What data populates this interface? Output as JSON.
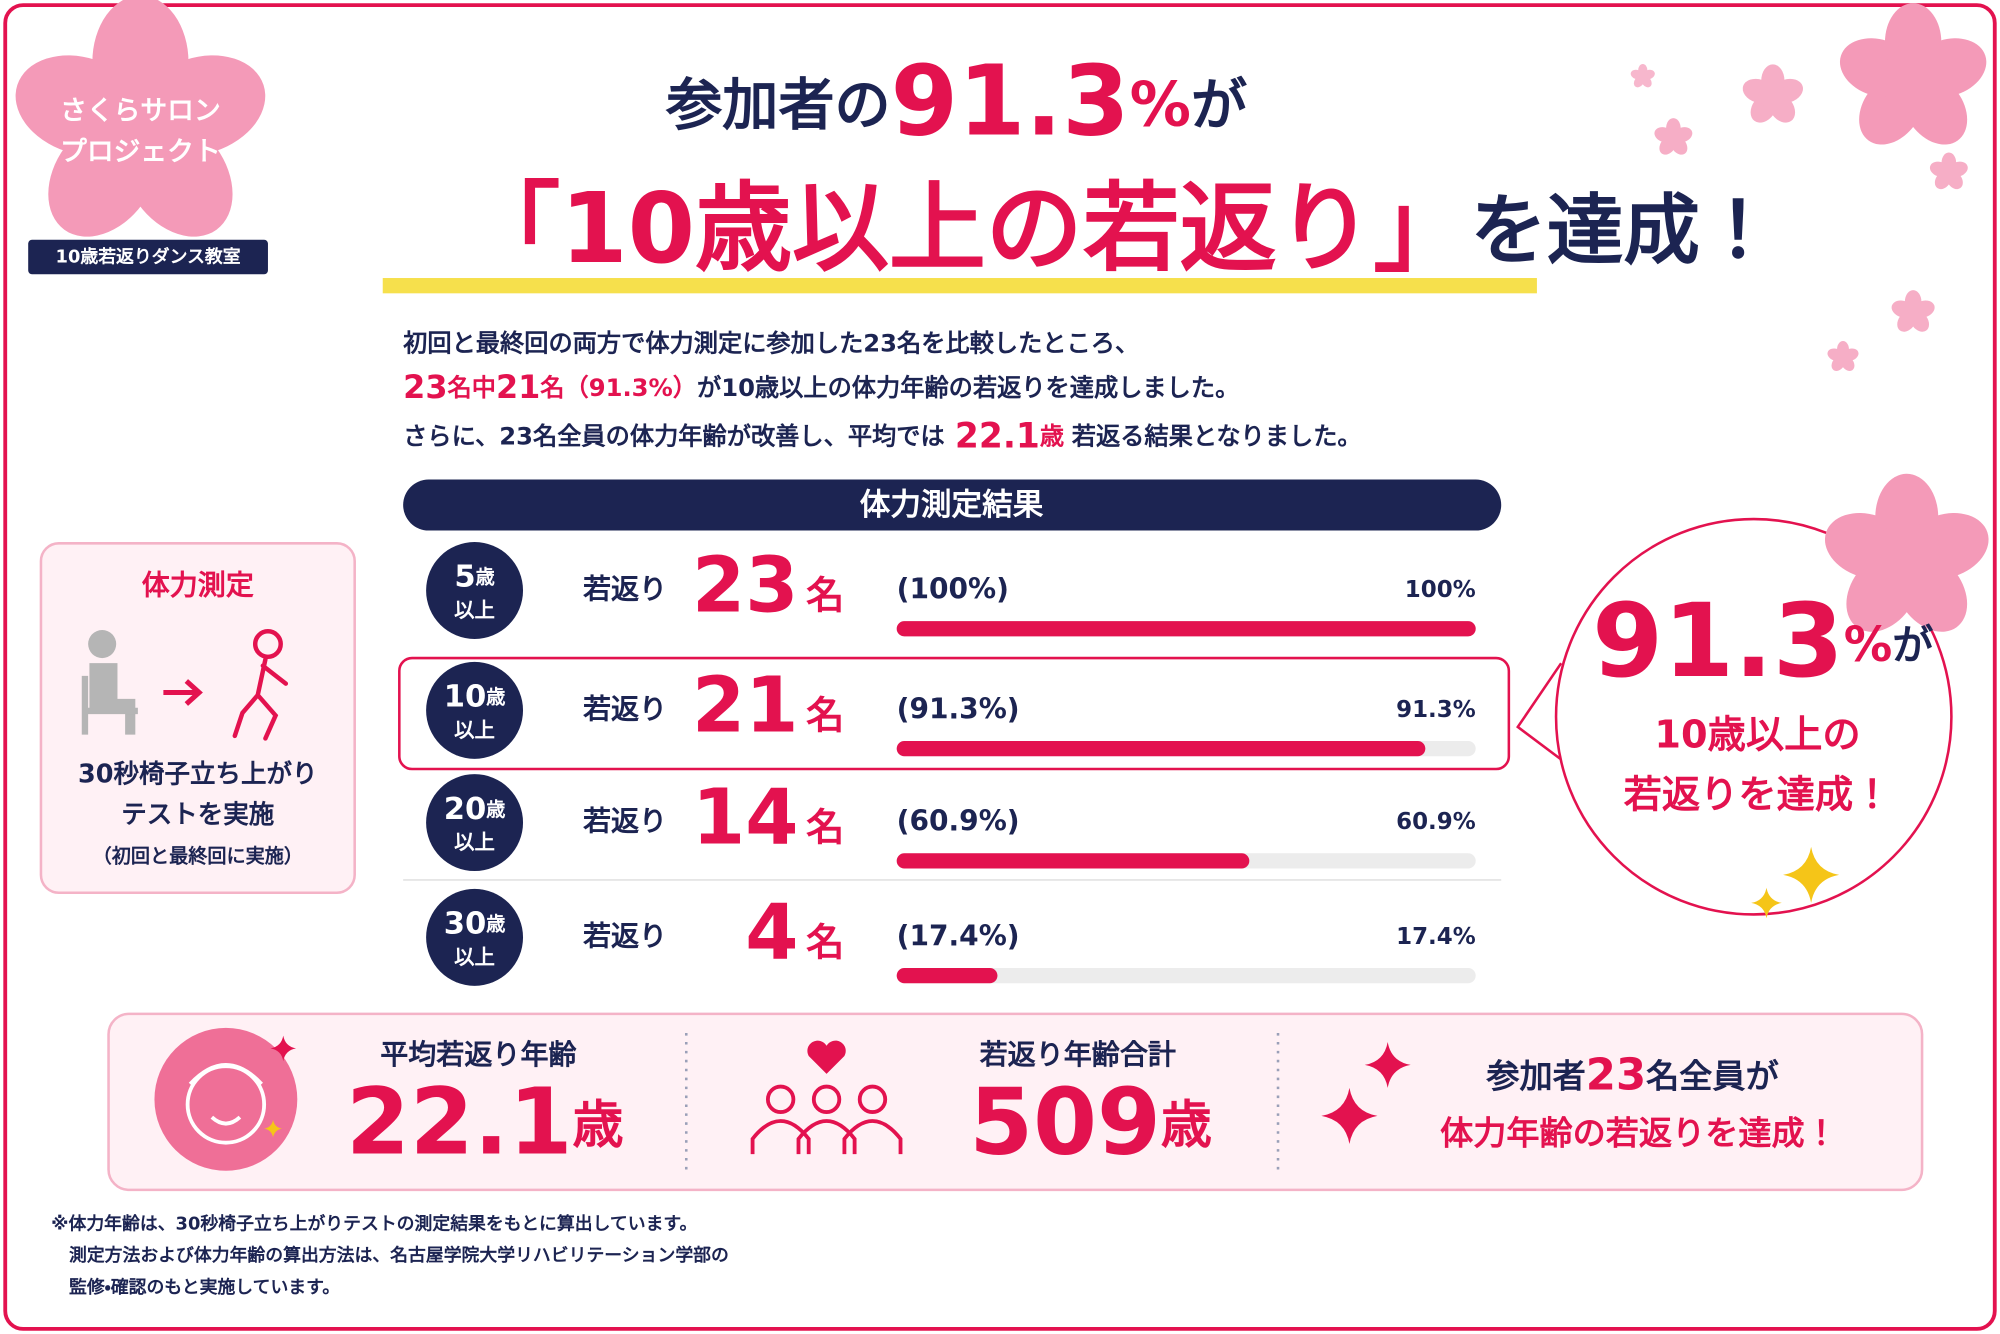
{
  "logo": {
    "line1": "さくらサロン",
    "line2": "プロジェクト",
    "tag": "10歳若返りダンス教室"
  },
  "headline": {
    "line1": [
      "参加者の",
      "91.3",
      "%",
      "が"
    ],
    "line2": [
      "「",
      "10歳以上の若返り",
      "」",
      "を達成！"
    ]
  },
  "intro": {
    "line1": "初回と最終回の両方で体力測定に参加した23名を比較したところ、",
    "line2": [
      "23",
      "名中",
      "21",
      "名",
      "（91.3%）",
      "が10歳以上の体力年齢の若返りを達成しました。"
    ],
    "line3": [
      "さらに、23名全員の体力年齢が改善し、平均では",
      "22.1",
      "歳",
      "若返る結果となりました。"
    ]
  },
  "results": {
    "title": "体力測定結果",
    "rows": [
      {
        "age": "5",
        "age_unit": "歳",
        "age_suffix": "以上",
        "label": "若返り",
        "count": "23",
        "count_unit": "名",
        "ratio": "(100%)",
        "percent": 100,
        "percent_label": "100%"
      },
      {
        "age": "10",
        "age_unit": "歳",
        "age_suffix": "以上",
        "label": "若返り",
        "count": "21",
        "count_unit": "名",
        "ratio": "(91.3%)",
        "percent": 91.3,
        "percent_label": "91.3%"
      },
      {
        "age": "20",
        "age_unit": "歳",
        "age_suffix": "以上",
        "label": "若返り",
        "count": "14",
        "count_unit": "名",
        "ratio": "(60.9%)",
        "percent": 60.9,
        "percent_label": "60.9%"
      },
      {
        "age": "30",
        "age_unit": "歳",
        "age_suffix": "以上",
        "label": "若返り",
        "count": "4",
        "count_unit": "名",
        "ratio": "(17.4%)",
        "percent": 17.4,
        "percent_label": "17.4%"
      }
    ]
  },
  "method": {
    "title": "体力測定",
    "line1": "30秒椅子立ち上がり",
    "line2": "テストを実施",
    "note": "（初回と最終回に実施）"
  },
  "callout": {
    "value": "91.3",
    "unit": "%",
    "suffix": "が",
    "line2": "10歳以上の",
    "line3": "若返りを達成！"
  },
  "summary": {
    "items": [
      {
        "label": "平均若返り年齢",
        "value": "22.1",
        "unit": "歳"
      },
      {
        "label": "若返り年齢合計",
        "value": "509",
        "unit": "歳"
      }
    ],
    "message": {
      "line1": [
        "参加者",
        "23",
        "名全員が"
      ],
      "line2": "体力年齢の若返りを達成！"
    }
  },
  "footnote": [
    "※体力年齢は、30秒椅子立ち上がりテストの測定結果をもとに算出しています。",
    "測定方法および体力年齢の算出方法は、名古屋学院大学リハビリテーション学部の",
    "監修・確認のもと実施しています。"
  ]
}
